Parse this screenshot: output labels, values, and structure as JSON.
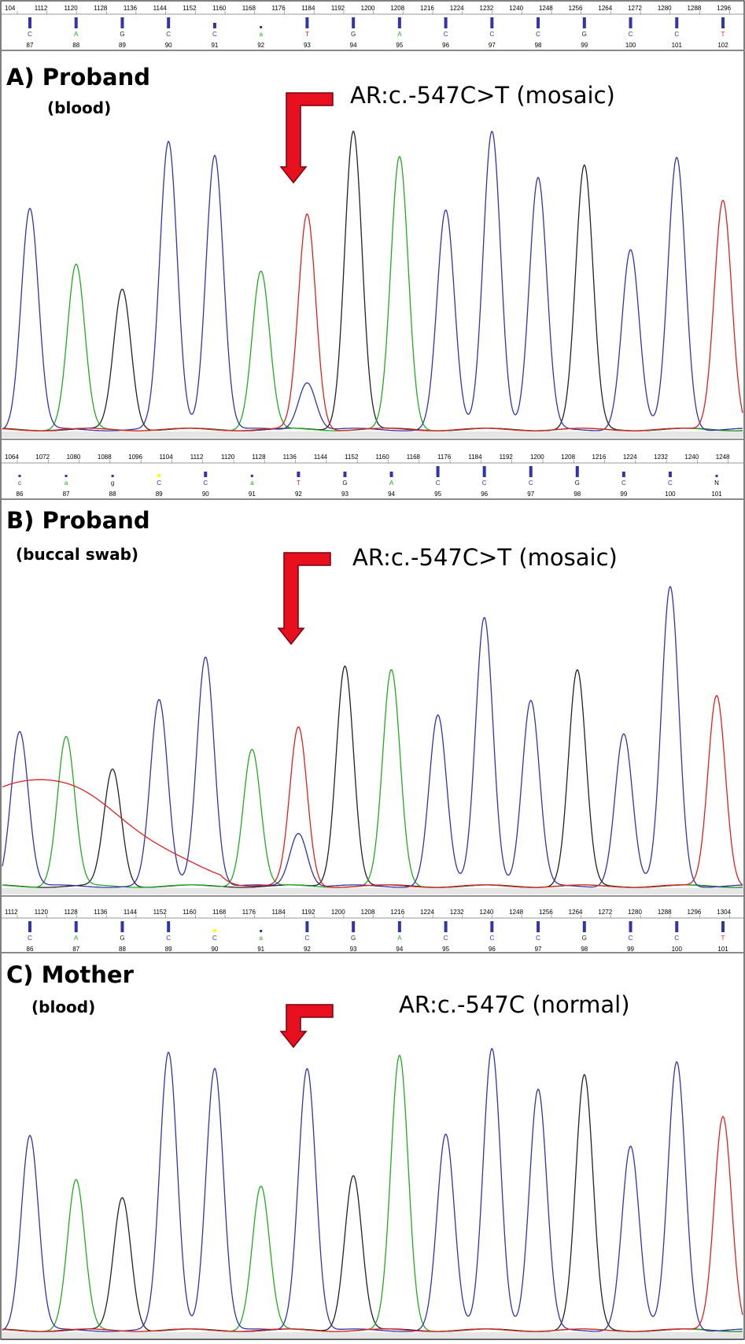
{
  "colors": {
    "C": "#3333aa",
    "A": "#22aa22",
    "G": "#222222",
    "T": "#e02020",
    "marker": "#3333aa",
    "arrow_fill": "#e8101e",
    "arrow_stroke": "#7a0010",
    "lowq": "#ffff00"
  },
  "chart_data": [
    {
      "type": "line",
      "panel": "A",
      "title": "A) Proband",
      "subtitle": "(blood)",
      "annotation": "AR:c.-547C>T (mosaic)",
      "ruler_ticks": [
        "104",
        "1112",
        "1120",
        "1128",
        "1136",
        "1144",
        "1152",
        "1160",
        "1168",
        "1176",
        "1184",
        "1192",
        "1200",
        "1208",
        "1216",
        "1224",
        "1232",
        "1240",
        "1248",
        "1256",
        "1264",
        "1272",
        "1280",
        "1288",
        "1296"
      ],
      "base_calls": [
        {
          "pos": "87",
          "base": "C",
          "q": "high",
          "trace": "C",
          "height": 0.74
        },
        {
          "pos": "88",
          "base": "A",
          "q": "high",
          "trace": "A",
          "height": 0.55
        },
        {
          "pos": "89",
          "base": "G",
          "q": "high",
          "trace": "G",
          "height": 0.47
        },
        {
          "pos": "90",
          "base": "C",
          "q": "high",
          "trace": "C",
          "height": 0.96
        },
        {
          "pos": "91",
          "base": "C",
          "q": "med",
          "trace": "C",
          "height": 0.92
        },
        {
          "pos": "92",
          "base": "a",
          "q": "low",
          "trace": "A",
          "height": 0.53
        },
        {
          "pos": "93",
          "base": "T",
          "q": "high",
          "trace": "T",
          "height": 0.72,
          "minor": {
            "trace": "C",
            "height": 0.16
          }
        },
        {
          "pos": "94",
          "base": "G",
          "q": "high",
          "trace": "G",
          "height": 1.0
        },
        {
          "pos": "95",
          "base": "A",
          "q": "high",
          "trace": "A",
          "height": 0.91
        },
        {
          "pos": "96",
          "base": "C",
          "q": "high",
          "trace": "C",
          "height": 0.73
        },
        {
          "pos": "97",
          "base": "C",
          "q": "high",
          "trace": "C",
          "height": 1.0
        },
        {
          "pos": "98",
          "base": "C",
          "q": "high",
          "trace": "C",
          "height": 0.84
        },
        {
          "pos": "99",
          "base": "G",
          "q": "high",
          "trace": "G",
          "height": 0.88
        },
        {
          "pos": "100",
          "base": "C",
          "q": "high",
          "trace": "C",
          "height": 0.6
        },
        {
          "pos": "101",
          "base": "C",
          "q": "high",
          "trace": "C",
          "height": 0.91
        },
        {
          "pos": "102",
          "base": "T",
          "q": "high",
          "trace": "T",
          "height": 0.77
        }
      ]
    },
    {
      "type": "line",
      "panel": "B",
      "title": "B) Proband",
      "subtitle": "(buccal swab)",
      "annotation": "AR:c.-547C>T (mosaic)",
      "ruler_ticks": [
        "1064",
        "1072",
        "1080",
        "1088",
        "1096",
        "1104",
        "1112",
        "1120",
        "1128",
        "1136",
        "1144",
        "1152",
        "1160",
        "1168",
        "1176",
        "1184",
        "1192",
        "1200",
        "1208",
        "1216",
        "1224",
        "1232",
        "1240",
        "1248"
      ],
      "base_calls": [
        {
          "pos": "86",
          "base": "c",
          "q": "low",
          "trace": "C",
          "height": 0.52
        },
        {
          "pos": "87",
          "base": "a",
          "q": "low",
          "trace": "A",
          "height": 0.5
        },
        {
          "pos": "88",
          "base": "g",
          "q": "low",
          "trace": "G",
          "height": 0.39
        },
        {
          "pos": "89",
          "base": "C",
          "q": "lowest",
          "trace": "C",
          "height": 0.62
        },
        {
          "pos": "90",
          "base": "C",
          "q": "med",
          "trace": "C",
          "height": 0.77
        },
        {
          "pos": "91",
          "base": "a",
          "q": "low",
          "trace": "A",
          "height": 0.46
        },
        {
          "pos": "92",
          "base": "T",
          "q": "med",
          "trace": "T",
          "height": 0.53,
          "minor": {
            "trace": "C",
            "height": 0.18
          }
        },
        {
          "pos": "93",
          "base": "G",
          "q": "med",
          "trace": "G",
          "height": 0.74
        },
        {
          "pos": "94",
          "base": "A",
          "q": "med",
          "trace": "A",
          "height": 0.72
        },
        {
          "pos": "95",
          "base": "C",
          "q": "high",
          "trace": "C",
          "height": 0.57
        },
        {
          "pos": "96",
          "base": "C",
          "q": "high",
          "trace": "C",
          "height": 0.9
        },
        {
          "pos": "97",
          "base": "C",
          "q": "high",
          "trace": "C",
          "height": 0.62
        },
        {
          "pos": "98",
          "base": "G",
          "q": "high",
          "trace": "G",
          "height": 0.72
        },
        {
          "pos": "99",
          "base": "C",
          "q": "med",
          "trace": "C",
          "height": 0.51
        },
        {
          "pos": "100",
          "base": "C",
          "q": "med",
          "trace": "C",
          "height": 1.0
        },
        {
          "pos": "101",
          "base": "N",
          "q": "low",
          "trace": "T",
          "height": 0.64
        }
      ]
    },
    {
      "type": "line",
      "panel": "C",
      "title": "C) Mother",
      "subtitle": "(blood)",
      "annotation": "AR:c.-547C (normal)",
      "ruler_ticks": [
        "1112",
        "1120",
        "1128",
        "1136",
        "1144",
        "1152",
        "1160",
        "1168",
        "1176",
        "1184",
        "1192",
        "1200",
        "1208",
        "1216",
        "1224",
        "1232",
        "1240",
        "1248",
        "1256",
        "1264",
        "1272",
        "1280",
        "1288",
        "1296",
        "1304"
      ],
      "base_calls": [
        {
          "pos": "86",
          "base": "C",
          "q": "high",
          "trace": "C",
          "height": 0.69
        },
        {
          "pos": "87",
          "base": "A",
          "q": "high",
          "trace": "A",
          "height": 0.53
        },
        {
          "pos": "88",
          "base": "G",
          "q": "high",
          "trace": "G",
          "height": 0.47
        },
        {
          "pos": "89",
          "base": "C",
          "q": "high",
          "trace": "C",
          "height": 0.98
        },
        {
          "pos": "90",
          "base": "C",
          "q": "lowest",
          "trace": "C",
          "height": 0.93
        },
        {
          "pos": "91",
          "base": "a",
          "q": "low",
          "trace": "A",
          "height": 0.51
        },
        {
          "pos": "92",
          "base": "C",
          "q": "high",
          "trace": "C",
          "height": 0.93
        },
        {
          "pos": "93",
          "base": "G",
          "q": "high",
          "trace": "G",
          "height": 0.55
        },
        {
          "pos": "94",
          "base": "A",
          "q": "high",
          "trace": "A",
          "height": 0.97
        },
        {
          "pos": "95",
          "base": "C",
          "q": "high",
          "trace": "C",
          "height": 0.69
        },
        {
          "pos": "96",
          "base": "C",
          "q": "high",
          "trace": "C",
          "height": 1.0
        },
        {
          "pos": "97",
          "base": "C",
          "q": "high",
          "trace": "C",
          "height": 0.85
        },
        {
          "pos": "98",
          "base": "G",
          "q": "high",
          "trace": "G",
          "height": 0.9
        },
        {
          "pos": "99",
          "base": "C",
          "q": "high",
          "trace": "C",
          "height": 0.65
        },
        {
          "pos": "100",
          "base": "C",
          "q": "high",
          "trace": "C",
          "height": 0.95
        },
        {
          "pos": "101",
          "base": "T",
          "q": "high",
          "trace": "T",
          "height": 0.76
        }
      ]
    }
  ]
}
